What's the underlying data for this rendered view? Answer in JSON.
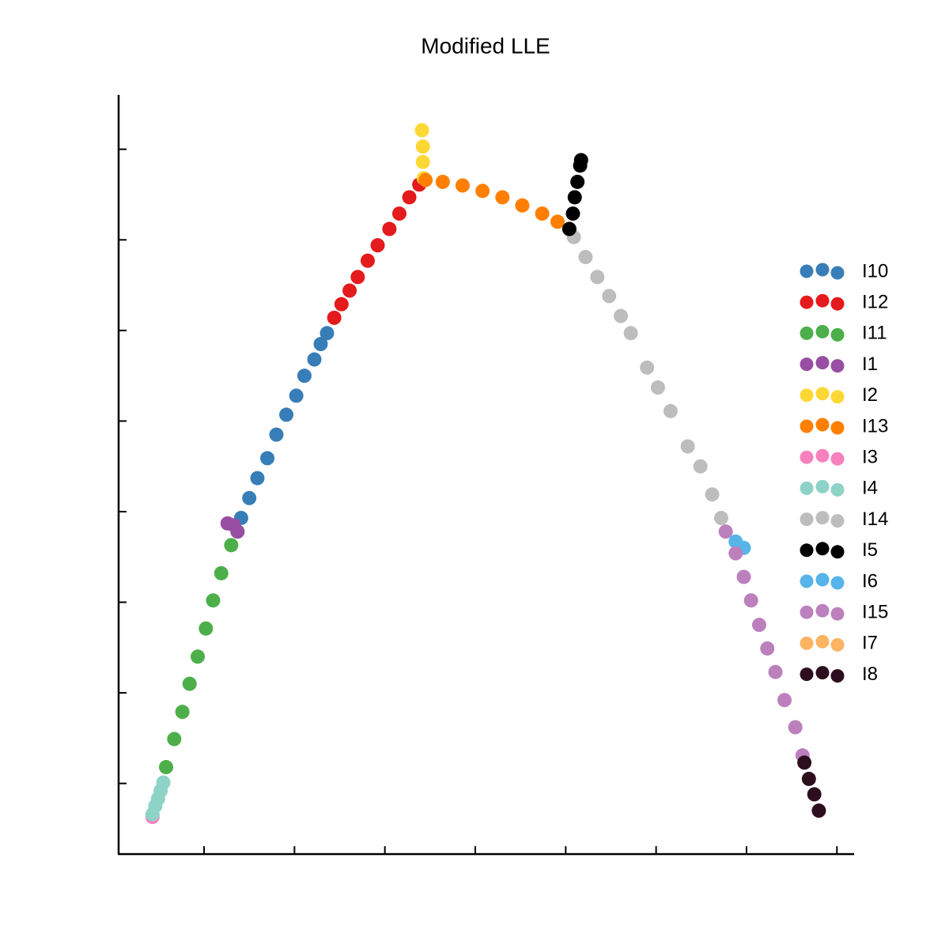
{
  "chart_data": {
    "type": "scatter",
    "title": "Modified LLE",
    "xlim": [
      0.055,
      8.19
    ],
    "ylim": [
      0.22,
      8.6
    ],
    "xticks": [
      1,
      2,
      3,
      4,
      5,
      6,
      7,
      8
    ],
    "yticks": [
      1,
      2,
      3,
      4,
      5,
      6,
      7,
      8
    ],
    "legend": "right",
    "series": [
      {
        "name": "I10",
        "color": "#377eb8",
        "x": [
          1.41,
          1.5,
          1.59,
          1.7,
          1.8,
          1.91,
          2.02,
          2.11,
          2.22,
          2.29,
          2.36
        ],
        "y": [
          3.93,
          4.15,
          4.37,
          4.59,
          4.85,
          5.07,
          5.28,
          5.5,
          5.68,
          5.85,
          5.97
        ]
      },
      {
        "name": "I12",
        "color": "#e41a1c",
        "x": [
          2.44,
          2.52,
          2.61,
          2.7,
          2.81,
          2.92,
          3.05,
          3.16,
          3.27,
          3.38
        ],
        "y": [
          6.14,
          6.29,
          6.44,
          6.59,
          6.77,
          6.94,
          7.12,
          7.29,
          7.47,
          7.61
        ]
      },
      {
        "name": "I11",
        "color": "#4daf4a",
        "x": [
          0.58,
          0.67,
          0.76,
          0.84,
          0.93,
          1.02,
          1.1,
          1.19,
          1.3,
          1.37
        ],
        "y": [
          1.18,
          1.49,
          1.79,
          2.1,
          2.4,
          2.71,
          3.02,
          3.32,
          3.63,
          3.78
        ]
      },
      {
        "name": "I1",
        "color": "#984ea3",
        "x": [
          1.26,
          1.33,
          1.37
        ],
        "y": [
          3.87,
          3.85,
          3.78
        ]
      },
      {
        "name": "I2",
        "color": "#fdd835",
        "x": [
          3.41,
          3.42,
          3.42,
          3.43
        ],
        "y": [
          8.21,
          8.03,
          7.86,
          7.68
        ]
      },
      {
        "name": "I13",
        "color": "#ff7f00",
        "x": [
          3.45,
          3.64,
          3.86,
          4.08,
          4.3,
          4.52,
          4.74,
          4.91,
          5.04
        ],
        "y": [
          7.66,
          7.64,
          7.6,
          7.54,
          7.47,
          7.38,
          7.29,
          7.2,
          7.12
        ]
      },
      {
        "name": "I3",
        "color": "#f781bf",
        "x": [
          0.43
        ],
        "y": [
          0.63
        ]
      },
      {
        "name": "I4",
        "color": "#8dd3c7",
        "x": [
          0.43,
          0.46,
          0.49,
          0.52,
          0.55
        ],
        "y": [
          0.66,
          0.75,
          0.83,
          0.92,
          1.01
        ]
      },
      {
        "name": "I14",
        "color": "#bdbdbd",
        "x": [
          5.09,
          5.22,
          5.35,
          5.48,
          5.61,
          5.72,
          5.9,
          6.02,
          6.16,
          6.35,
          6.49,
          6.62,
          6.72
        ],
        "y": [
          7.03,
          6.81,
          6.59,
          6.38,
          6.16,
          5.97,
          5.59,
          5.37,
          5.11,
          4.72,
          4.5,
          4.19,
          3.93
        ]
      },
      {
        "name": "I5",
        "color": "#000000",
        "x": [
          5.04,
          5.08,
          5.1,
          5.13,
          5.16,
          5.17
        ],
        "y": [
          7.12,
          7.29,
          7.47,
          7.64,
          7.82,
          7.88
        ]
      },
      {
        "name": "I6",
        "color": "#56b4e9",
        "x": [
          6.88,
          6.97
        ],
        "y": [
          3.67,
          3.6
        ]
      },
      {
        "name": "I15",
        "color": "#bc80bd",
        "x": [
          6.77,
          6.88,
          6.97,
          7.05,
          7.14,
          7.23,
          7.32,
          7.42,
          7.54,
          7.62
        ],
        "y": [
          3.78,
          3.54,
          3.28,
          3.02,
          2.75,
          2.49,
          2.23,
          1.92,
          1.62,
          1.31
        ]
      },
      {
        "name": "I7",
        "color": "#fdb462",
        "x": [],
        "y": []
      },
      {
        "name": "I8",
        "color": "#2d0e1e",
        "x": [
          7.64,
          7.69,
          7.75,
          7.8
        ],
        "y": [
          1.23,
          1.05,
          0.88,
          0.7
        ]
      }
    ]
  }
}
